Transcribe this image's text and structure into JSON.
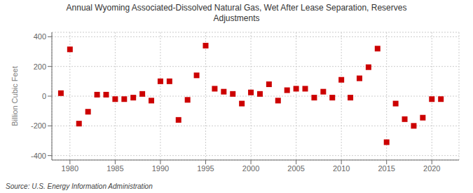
{
  "chart_data": {
    "type": "scatter",
    "title": "Annual Wyoming Associated-Dissolved Natural Gas, Wet After Lease Separation, Reserves\nAdjustments",
    "ylabel": "Billion Cubic Feet",
    "annotations": [
      "Source: U.S. Energy Information Administration"
    ],
    "x": [
      1979,
      1980,
      1981,
      1982,
      1983,
      1984,
      1985,
      1986,
      1987,
      1988,
      1989,
      1990,
      1991,
      1992,
      1993,
      1994,
      1995,
      1996,
      1997,
      1998,
      1999,
      2000,
      2001,
      2002,
      2003,
      2004,
      2005,
      2006,
      2007,
      2008,
      2009,
      2010,
      2011,
      2012,
      2013,
      2014,
      2015,
      2016,
      2017,
      2018,
      2019,
      2020,
      2021
    ],
    "values": [
      20,
      315,
      -185,
      -105,
      10,
      10,
      -20,
      -20,
      -10,
      15,
      -30,
      100,
      100,
      -160,
      -25,
      140,
      340,
      50,
      30,
      15,
      -50,
      25,
      15,
      80,
      -30,
      40,
      50,
      50,
      -10,
      30,
      -10,
      110,
      -10,
      120,
      195,
      320,
      -310,
      -50,
      -155,
      -200,
      -145,
      -20,
      -20
    ],
    "color": "#cc0000",
    "marker": "square",
    "xlim": [
      1978,
      2023
    ],
    "xticks": [
      1980,
      1985,
      1990,
      1995,
      2000,
      2005,
      2010,
      2015,
      2020
    ],
    "ylim": [
      -430,
      430
    ],
    "yticks": [
      -400,
      -200,
      0,
      200,
      400
    ],
    "grid": true
  }
}
